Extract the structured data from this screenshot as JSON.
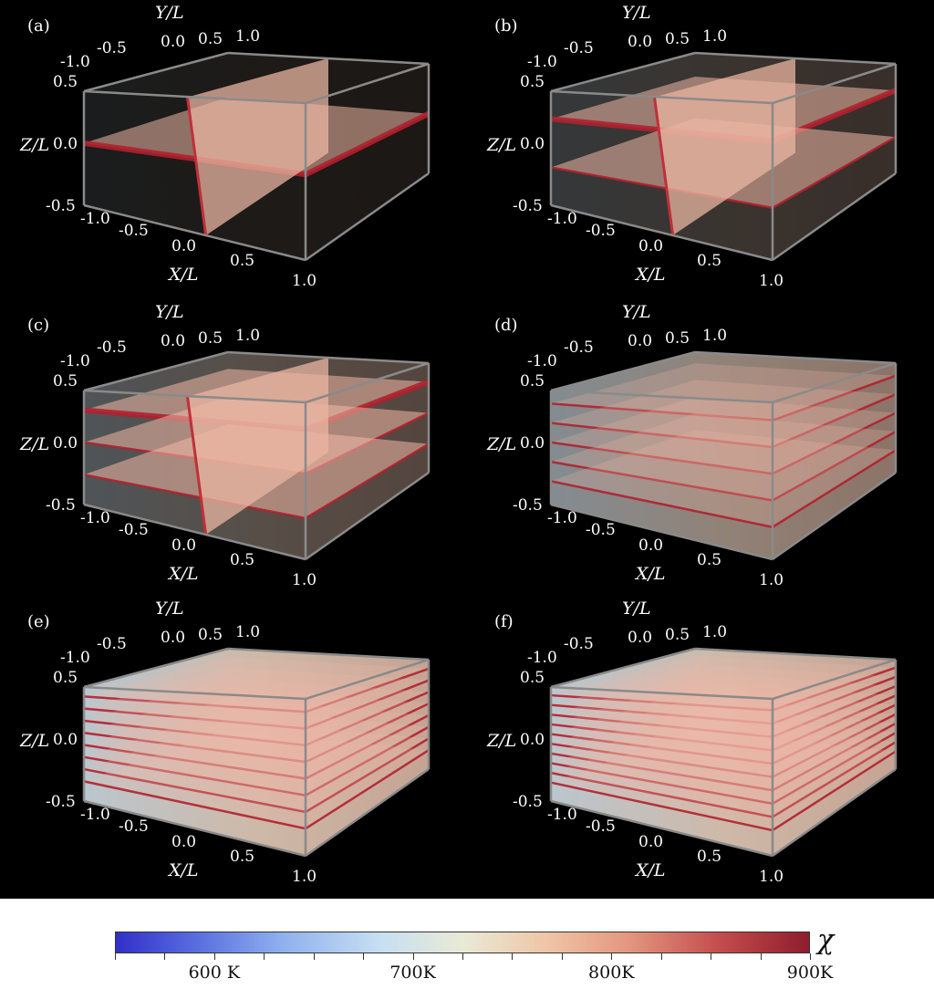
{
  "axis_titles": {
    "x": "X/L",
    "y": "Y/L",
    "z": "Z/L"
  },
  "x_ticks": [
    "-1.0",
    "-0.5",
    "0.0",
    "0.5",
    "1.0"
  ],
  "y_ticks": [
    "-1.0",
    "-0.5",
    "0.0",
    "0.5",
    "1.0"
  ],
  "z_ticks": [
    "0.5",
    "0.0",
    "-0.5"
  ],
  "panels": [
    {
      "id": "a",
      "label": "(a)",
      "layers": 1,
      "sheet": true
    },
    {
      "id": "b",
      "label": "(b)",
      "layers": 2,
      "sheet": true
    },
    {
      "id": "c",
      "label": "(c)",
      "layers": 3,
      "sheet": true
    },
    {
      "id": "d",
      "label": "(d)",
      "layers": 5,
      "sheet": false
    },
    {
      "id": "e",
      "label": "(e)",
      "layers": 8,
      "sheet": false
    },
    {
      "id": "f",
      "label": "(f)",
      "layers": 10,
      "sheet": false
    }
  ],
  "colorbar": {
    "symbol": "χ",
    "labels": [
      {
        "text": "600 K",
        "value": 600
      },
      {
        "text": "700K",
        "value": 700
      },
      {
        "text": "800K",
        "value": 800
      },
      {
        "text": "900K",
        "value": 900
      }
    ],
    "min": 550,
    "max": 900,
    "colors": {
      "low": "#3030c8",
      "mid": "#e9ead7",
      "high": "#8e1d2c"
    }
  }
}
